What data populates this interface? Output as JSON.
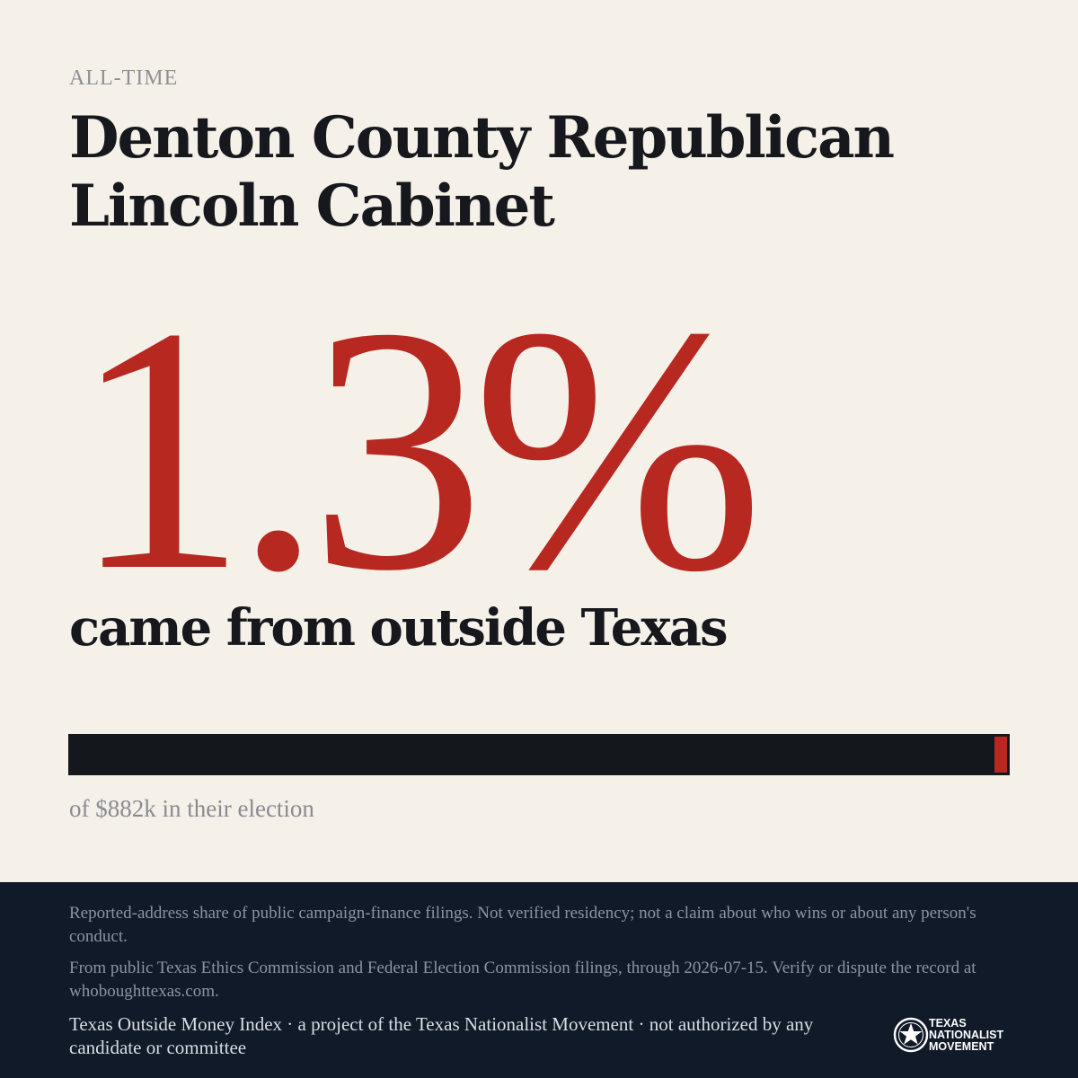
{
  "eyebrow": "ALL-TIME",
  "title": "Denton County Republican Lincoln Cabinet",
  "stat": {
    "percent_label": "1.3%",
    "percent_value": 1.3,
    "caption": "came from outside Texas"
  },
  "bar": {
    "fraction": 0.013,
    "note": "of $882k in their election"
  },
  "footer": {
    "disclaimer": "Reported-address share of public campaign-finance filings. Not verified residency; not a claim about who wins or about any person's conduct.",
    "source": "From public Texas Ethics Commission and Federal Election Commission filings, through 2026-07-15. Verify or dispute the record at whoboughttexas.com.",
    "credit": "Texas Outside Money Index · a project of the Texas Nationalist Movement · not authorized by any candidate or committee"
  },
  "logo": {
    "icon": "star-seal-icon",
    "lines": [
      "TEXAS",
      "NATIONALIST",
      "MOVEMENT"
    ]
  },
  "colors": {
    "background": "#f5f0e8",
    "accent": "#b72821",
    "ink": "#14171c",
    "footer": "#101a28"
  }
}
